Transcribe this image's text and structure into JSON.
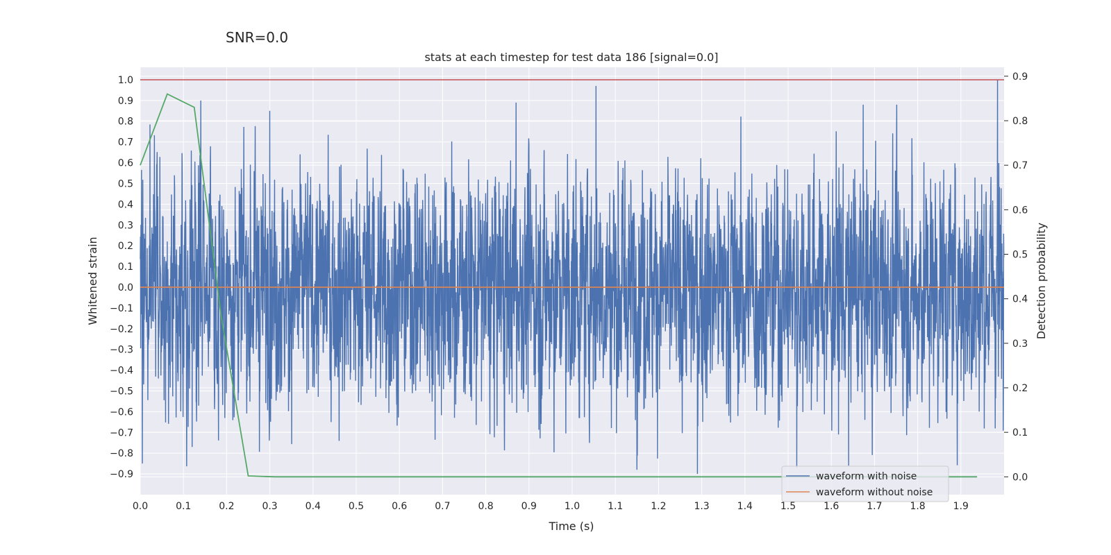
{
  "chart_data": {
    "type": "line",
    "suptitle": "SNR=0.0",
    "title": "stats at each timestep for test data 186 [signal=0.0]",
    "xlabel": "Time (s)",
    "ylabel_left": "Whitened strain",
    "ylabel_right": "Detection probability",
    "xlim": [
      0.0,
      2.0
    ],
    "ylim_left": [
      -1.0,
      1.06
    ],
    "ylim_right": [
      -0.04,
      0.92
    ],
    "x_ticks": [
      "0.0",
      "0.1",
      "0.2",
      "0.3",
      "0.4",
      "0.5",
      "0.6",
      "0.7",
      "0.8",
      "0.9",
      "1.0",
      "1.1",
      "1.2",
      "1.3",
      "1.4",
      "1.5",
      "1.6",
      "1.7",
      "1.8",
      "1.9"
    ],
    "y_ticks_left": [
      "1.0",
      "0.9",
      "0.8",
      "0.7",
      "0.6",
      "0.5",
      "0.4",
      "0.3",
      "0.2",
      "0.1",
      "0.0",
      "−0.1",
      "−0.2",
      "−0.3",
      "−0.4",
      "−0.5",
      "−0.6",
      "−0.7",
      "−0.8",
      "−0.9"
    ],
    "y_ticks_right": [
      "0.9",
      "0.8",
      "0.7",
      "0.6",
      "0.5",
      "0.4",
      "0.3",
      "0.2",
      "0.1",
      "0.0"
    ],
    "grid": true,
    "legend_position": "lower-right",
    "colors": {
      "background": "#eaeaf2",
      "grid": "#ffffff",
      "noisy": "#4c72b0",
      "clean": "#dd8452",
      "probability": "#55a868",
      "threshold": "#c44e52"
    },
    "series": [
      {
        "name": "waveform with noise",
        "axis": "left",
        "style": "dense noise",
        "sample_rate_hz": 2048,
        "approx_std": 0.28,
        "notable_peaks": [
          {
            "x": 0.14,
            "y": 0.9
          },
          {
            "x": 0.3,
            "y": 0.85
          },
          {
            "x": 0.87,
            "y": 0.89
          },
          {
            "x": 1.055,
            "y": 0.97
          },
          {
            "x": 1.29,
            "y": -0.9
          },
          {
            "x": 1.52,
            "y": -0.87
          },
          {
            "x": 1.985,
            "y": 1.0
          },
          {
            "x": 0.005,
            "y": -0.85
          },
          {
            "x": 0.12,
            "y": -0.77
          },
          {
            "x": 1.64,
            "y": -0.86
          }
        ]
      },
      {
        "name": "waveform without noise",
        "axis": "left",
        "x": [
          0.0,
          2.0
        ],
        "y": [
          0.0,
          0.0
        ]
      },
      {
        "name": "detection probability",
        "axis": "right",
        "x": [
          0.0,
          0.0625,
          0.125,
          0.1875,
          0.25,
          0.3125,
          0.375,
          0.4375,
          0.5,
          1.0,
          1.5,
          1.9375
        ],
        "y": [
          0.7,
          0.86,
          0.83,
          0.36,
          0.002,
          0.0,
          0.0,
          0.0,
          0.0,
          0.0,
          0.0,
          0.0
        ]
      },
      {
        "name": "threshold",
        "axis": "left",
        "x": [
          0.0,
          2.0
        ],
        "y": [
          1.0,
          1.0
        ]
      }
    ],
    "legend": [
      "waveform with noise",
      "waveform without noise"
    ]
  }
}
